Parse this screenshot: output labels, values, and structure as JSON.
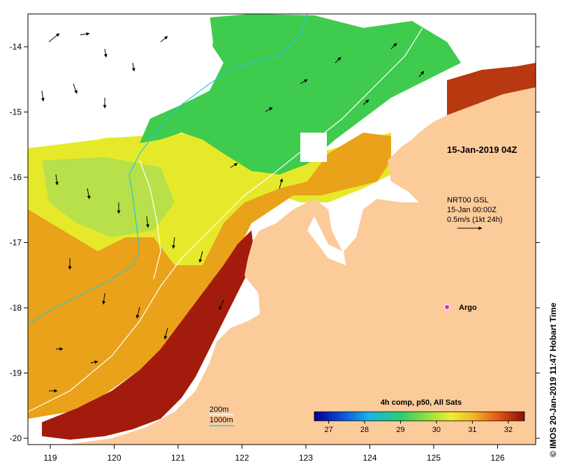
{
  "map": {
    "timestamp": "15-Jan-2019 04Z",
    "current_info": [
      "NRT00 GSL",
      "15-Jan 00:00Z",
      "0.5m/s (1kt 24h)"
    ],
    "argo_label": "Argo",
    "contour_legend": {
      "line1": "200m",
      "line2": "1000m"
    },
    "colorbar": {
      "title": "4h comp, p50, All Sats",
      "ticks": [
        "27",
        "28",
        "29",
        "30",
        "31",
        "32"
      ],
      "min": 26.6,
      "max": 32.45
    },
    "x_ticks": [
      "119",
      "120",
      "121",
      "122",
      "123",
      "124",
      "125",
      "126"
    ],
    "y_ticks": [
      "-14",
      "-15",
      "-16",
      "-17",
      "-18",
      "-19",
      "-20"
    ],
    "credit": "© IMOS 20-Jan-2019 11:47 Hobart Time",
    "colors": {
      "land": "#fccb9a",
      "hot": "#a31b0c",
      "warm": "#e8a418",
      "yellow": "#e6e92a",
      "green": "#35c449",
      "contour_200": "#ffffff",
      "contour_1000": "#28c9d9",
      "argo": "#e020e0"
    }
  }
}
